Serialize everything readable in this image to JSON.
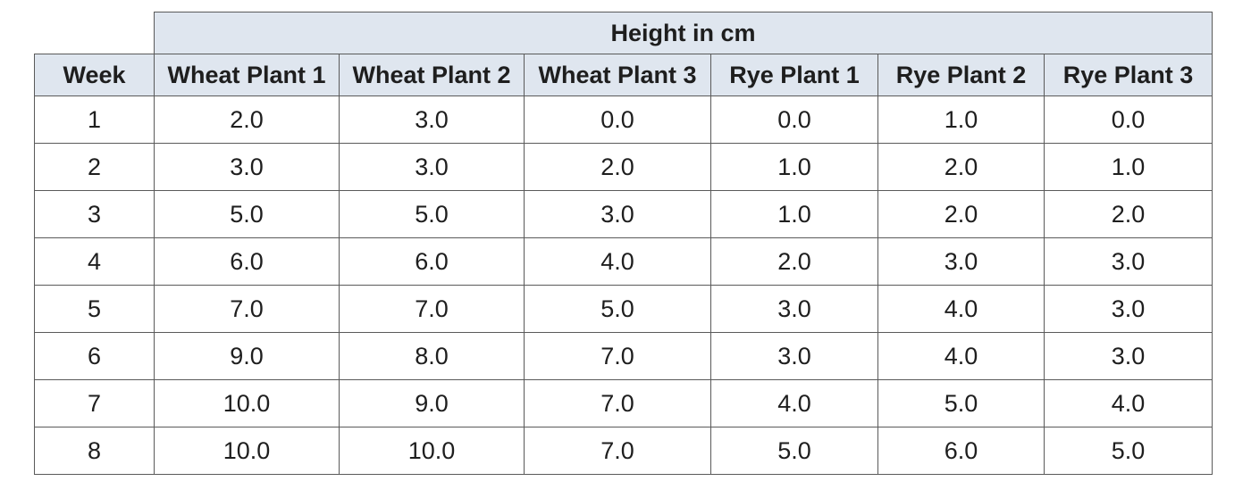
{
  "chart_data": {
    "type": "table",
    "group_header": "Height in cm",
    "row_header": "Week",
    "columns": [
      "Wheat Plant 1",
      "Wheat Plant 2",
      "Wheat Plant 3",
      "Rye Plant 1",
      "Rye Plant 2",
      "Rye Plant 3"
    ],
    "rows": [
      {
        "week": "1",
        "values": [
          "2.0",
          "3.0",
          "0.0",
          "0.0",
          "1.0",
          "0.0"
        ]
      },
      {
        "week": "2",
        "values": [
          "3.0",
          "3.0",
          "2.0",
          "1.0",
          "2.0",
          "1.0"
        ]
      },
      {
        "week": "3",
        "values": [
          "5.0",
          "5.0",
          "3.0",
          "1.0",
          "2.0",
          "2.0"
        ]
      },
      {
        "week": "4",
        "values": [
          "6.0",
          "6.0",
          "4.0",
          "2.0",
          "3.0",
          "3.0"
        ]
      },
      {
        "week": "5",
        "values": [
          "7.0",
          "7.0",
          "5.0",
          "3.0",
          "4.0",
          "3.0"
        ]
      },
      {
        "week": "6",
        "values": [
          "9.0",
          "8.0",
          "7.0",
          "3.0",
          "4.0",
          "3.0"
        ]
      },
      {
        "week": "7",
        "values": [
          "10.0",
          "9.0",
          "7.0",
          "4.0",
          "5.0",
          "4.0"
        ]
      },
      {
        "week": "8",
        "values": [
          "10.0",
          "10.0",
          "7.0",
          "5.0",
          "6.0",
          "5.0"
        ]
      }
    ]
  },
  "colors": {
    "header_fill": "#dfe6ef",
    "grid_line": "#5a5a5a",
    "text": "#1e1e1e"
  }
}
